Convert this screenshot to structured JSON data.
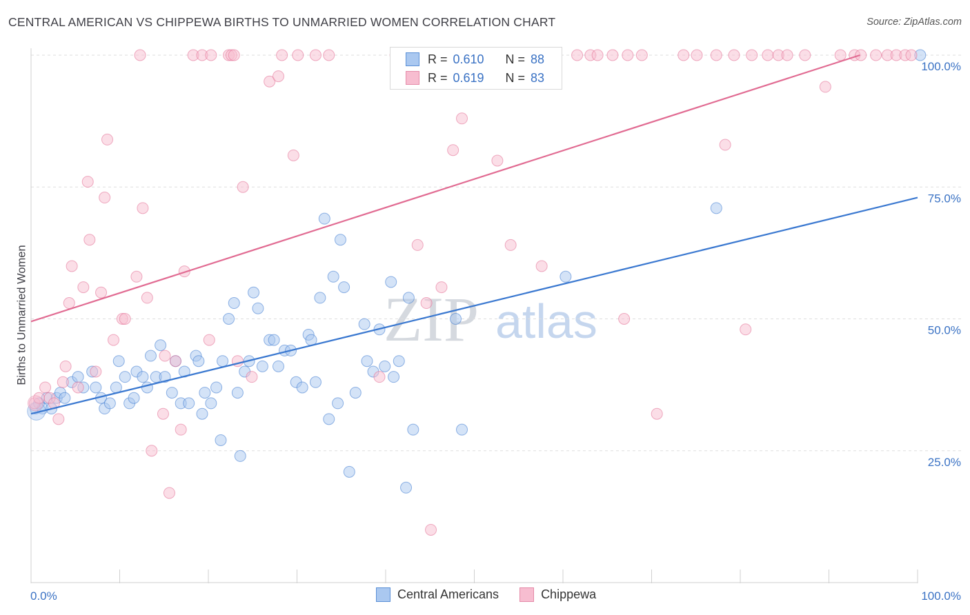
{
  "header": {
    "title": "CENTRAL AMERICAN VS CHIPPEWA BIRTHS TO UNMARRIED WOMEN CORRELATION CHART",
    "source": "Source: ZipAtlas.com"
  },
  "watermark": {
    "zip": "ZIP",
    "atlas": "atlas"
  },
  "legend": {
    "r_label": "R =",
    "n_label": "N =",
    "entries": [
      {
        "name": "Central Americans",
        "r": "0.610",
        "n": "88",
        "color": "#5a8fd6",
        "fill": "#aac8f0"
      },
      {
        "name": "Chippewa",
        "r": "0.619",
        "n": "83",
        "color": "#e58aa8",
        "fill": "#f7bdd0"
      }
    ]
  },
  "chart_data": {
    "type": "scatter",
    "title": "CENTRAL AMERICAN VS CHIPPEWA BIRTHS TO UNMARRIED WOMEN CORRELATION CHART",
    "xlabel": "",
    "ylabel": "Births to Unmarried Women",
    "xlim": [
      0,
      100
    ],
    "ylim": [
      0,
      104
    ],
    "x_tick_labels": [
      "0.0%",
      "100.0%"
    ],
    "y_ticks": [
      25,
      50,
      75,
      100
    ],
    "y_tick_labels": [
      "25.0%",
      "50.0%",
      "75.0%",
      "100.0%"
    ],
    "grid": true,
    "series": [
      {
        "name": "Central Americans",
        "color": "#3a78d0",
        "fill": "#aac8f0",
        "trend": [
          [
            0,
            32
          ],
          [
            100,
            73
          ]
        ],
        "points": [
          [
            0.5,
            33
          ],
          [
            0.9,
            34
          ],
          [
            1.3,
            33
          ],
          [
            1.8,
            35
          ],
          [
            2.3,
            33
          ],
          [
            2.9,
            35
          ],
          [
            3.3,
            36
          ],
          [
            3.8,
            35
          ],
          [
            4.6,
            38
          ],
          [
            5.3,
            39
          ],
          [
            5.9,
            37
          ],
          [
            6.9,
            40
          ],
          [
            7.3,
            37
          ],
          [
            7.9,
            35
          ],
          [
            8.3,
            33
          ],
          [
            8.9,
            34
          ],
          [
            9.6,
            37
          ],
          [
            9.9,
            42
          ],
          [
            10.6,
            39
          ],
          [
            11.1,
            34
          ],
          [
            11.6,
            35
          ],
          [
            11.9,
            40
          ],
          [
            12.6,
            39
          ],
          [
            13.1,
            37
          ],
          [
            13.5,
            43
          ],
          [
            14.1,
            39
          ],
          [
            14.6,
            45
          ],
          [
            15.1,
            39
          ],
          [
            15.9,
            36
          ],
          [
            16.3,
            42
          ],
          [
            16.9,
            34
          ],
          [
            17.3,
            40
          ],
          [
            17.8,
            34
          ],
          [
            18.6,
            43
          ],
          [
            18.9,
            42
          ],
          [
            19.3,
            32
          ],
          [
            19.6,
            36
          ],
          [
            20.3,
            34
          ],
          [
            20.9,
            37
          ],
          [
            21.4,
            27
          ],
          [
            21.6,
            42
          ],
          [
            22.3,
            50
          ],
          [
            22.9,
            53
          ],
          [
            23.3,
            36
          ],
          [
            23.6,
            24
          ],
          [
            24.1,
            40
          ],
          [
            24.6,
            42
          ],
          [
            25.1,
            55
          ],
          [
            25.6,
            52
          ],
          [
            26.1,
            41
          ],
          [
            26.9,
            46
          ],
          [
            27.4,
            46
          ],
          [
            27.9,
            41
          ],
          [
            28.6,
            44
          ],
          [
            29.3,
            44
          ],
          [
            29.9,
            38
          ],
          [
            30.6,
            37
          ],
          [
            31.3,
            47
          ],
          [
            31.6,
            46
          ],
          [
            32.1,
            38
          ],
          [
            32.6,
            54
          ],
          [
            33.1,
            69
          ],
          [
            33.6,
            31
          ],
          [
            34.1,
            58
          ],
          [
            34.6,
            34
          ],
          [
            34.9,
            65
          ],
          [
            35.3,
            56
          ],
          [
            35.9,
            21
          ],
          [
            36.6,
            36
          ],
          [
            37.6,
            49
          ],
          [
            37.9,
            42
          ],
          [
            38.6,
            40
          ],
          [
            39.3,
            48
          ],
          [
            39.9,
            41
          ],
          [
            40.6,
            57
          ],
          [
            40.9,
            39
          ],
          [
            41.5,
            42
          ],
          [
            42.3,
            18
          ],
          [
            42.6,
            54
          ],
          [
            43.1,
            29
          ],
          [
            47.9,
            50
          ],
          [
            48.6,
            29
          ],
          [
            60.3,
            58
          ],
          [
            77.3,
            71
          ],
          [
            100.3,
            100
          ]
        ]
      },
      {
        "name": "Chippewa",
        "color": "#e16b92",
        "fill": "#f7bdd0",
        "trend": [
          [
            0,
            49.5
          ],
          [
            93.5,
            100
          ]
        ],
        "points": [
          [
            0.4,
            34
          ],
          [
            0.9,
            35
          ],
          [
            1.6,
            37
          ],
          [
            2.1,
            35
          ],
          [
            2.6,
            34
          ],
          [
            3.1,
            31
          ],
          [
            3.6,
            38
          ],
          [
            3.9,
            41
          ],
          [
            4.3,
            53
          ],
          [
            4.6,
            60
          ],
          [
            5.3,
            37
          ],
          [
            5.9,
            56
          ],
          [
            6.4,
            76
          ],
          [
            6.6,
            65
          ],
          [
            7.3,
            40
          ],
          [
            7.9,
            55
          ],
          [
            8.3,
            73
          ],
          [
            8.6,
            84
          ],
          [
            9.3,
            46
          ],
          [
            10.3,
            50
          ],
          [
            10.6,
            50
          ],
          [
            11.9,
            58
          ],
          [
            12.3,
            100
          ],
          [
            12.6,
            71
          ],
          [
            13.1,
            54
          ],
          [
            13.6,
            25
          ],
          [
            14.9,
            32
          ],
          [
            15.1,
            43
          ],
          [
            15.6,
            17
          ],
          [
            16.3,
            42
          ],
          [
            16.9,
            29
          ],
          [
            17.3,
            59
          ],
          [
            18.3,
            100
          ],
          [
            19.3,
            100
          ],
          [
            20.1,
            46
          ],
          [
            20.3,
            100
          ],
          [
            22.3,
            100
          ],
          [
            22.6,
            100
          ],
          [
            22.9,
            100
          ],
          [
            23.3,
            42
          ],
          [
            23.9,
            75
          ],
          [
            24.9,
            39
          ],
          [
            26.9,
            95
          ],
          [
            27.9,
            96
          ],
          [
            28.3,
            100
          ],
          [
            29.6,
            81
          ],
          [
            30.1,
            100
          ],
          [
            32.1,
            100
          ],
          [
            33.6,
            100
          ],
          [
            39.3,
            39
          ],
          [
            41.1,
            100
          ],
          [
            42.3,
            100
          ],
          [
            43.6,
            64
          ],
          [
            44.6,
            53
          ],
          [
            45.1,
            10
          ],
          [
            45.6,
            100
          ],
          [
            46.3,
            56
          ],
          [
            47.6,
            82
          ],
          [
            48.6,
            88
          ],
          [
            50.6,
            100
          ],
          [
            52.6,
            80
          ],
          [
            54.1,
            64
          ],
          [
            56.6,
            100
          ],
          [
            57.6,
            60
          ],
          [
            61.6,
            100
          ],
          [
            63.1,
            100
          ],
          [
            63.9,
            100
          ],
          [
            65.6,
            100
          ],
          [
            66.9,
            50
          ],
          [
            67.3,
            100
          ],
          [
            68.9,
            100
          ],
          [
            70.6,
            32
          ],
          [
            73.6,
            100
          ],
          [
            75.1,
            100
          ],
          [
            77.3,
            100
          ],
          [
            78.3,
            83
          ],
          [
            79.3,
            100
          ],
          [
            80.6,
            48
          ],
          [
            81.3,
            100
          ],
          [
            83.1,
            100
          ],
          [
            84.3,
            100
          ],
          [
            85.3,
            100
          ],
          [
            87.3,
            100
          ],
          [
            89.6,
            94
          ],
          [
            91.3,
            100
          ],
          [
            92.9,
            100
          ],
          [
            93.6,
            100
          ],
          [
            95.3,
            100
          ],
          [
            96.6,
            100
          ],
          [
            97.6,
            100
          ],
          [
            98.6,
            100
          ],
          [
            99.3,
            100
          ]
        ]
      }
    ]
  }
}
